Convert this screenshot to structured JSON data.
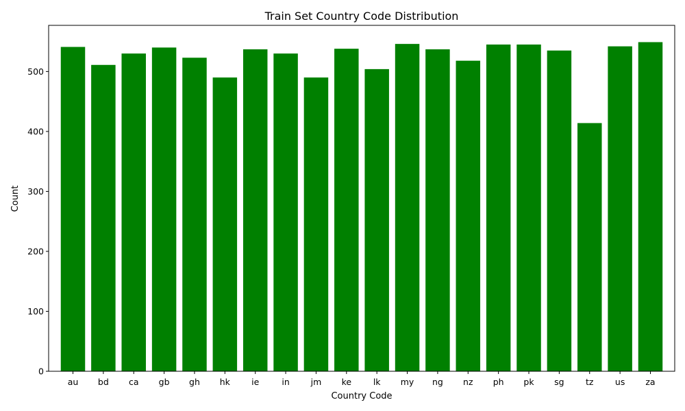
{
  "chart_data": {
    "type": "bar",
    "title": "Train Set Country Code Distribution",
    "xlabel": "Country Code",
    "ylabel": "Count",
    "categories": [
      "au",
      "bd",
      "ca",
      "gb",
      "gh",
      "hk",
      "ie",
      "in",
      "jm",
      "ke",
      "lk",
      "my",
      "ng",
      "nz",
      "ph",
      "pk",
      "sg",
      "tz",
      "us",
      "za"
    ],
    "values": [
      541,
      511,
      530,
      540,
      523,
      490,
      537,
      530,
      490,
      538,
      504,
      546,
      537,
      518,
      545,
      545,
      535,
      414,
      542,
      549
    ],
    "ylim": [
      0,
      577
    ],
    "yticks": [
      0,
      100,
      200,
      300,
      400,
      500
    ],
    "bar_color": "#008000",
    "grid": false
  }
}
